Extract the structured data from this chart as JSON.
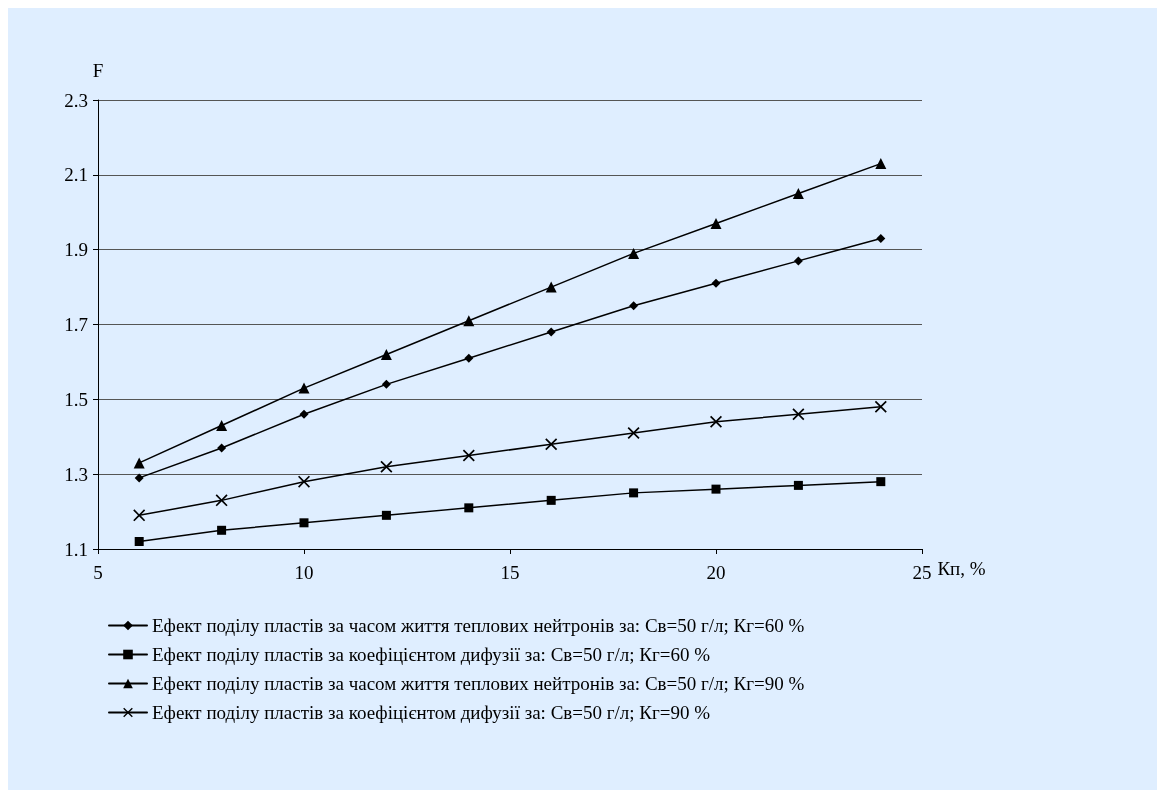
{
  "chart_data": {
    "type": "line",
    "xlabel": "Кп, %",
    "ylabel": "F",
    "x": [
      6,
      8,
      10,
      12,
      14,
      16,
      18,
      20,
      22,
      24
    ],
    "xlim": [
      5,
      25
    ],
    "xticks": [
      5,
      10,
      15,
      20,
      25
    ],
    "ylim": [
      1.1,
      2.3
    ],
    "yticks": [
      1.1,
      1.3,
      1.5,
      1.7,
      1.9,
      2.1,
      2.3
    ],
    "grid": "y",
    "legend": "bottom",
    "line_style": "solid",
    "series": [
      {
        "name": "Ефект поділу пластів за часом життя теплових нейтронів за: Св=50 г/л; Кг=60 %",
        "color": "#000000",
        "marker": "diamond",
        "values": [
          1.29,
          1.37,
          1.46,
          1.54,
          1.61,
          1.68,
          1.75,
          1.81,
          1.87,
          1.93
        ]
      },
      {
        "name": "Ефект поділу пластів за коефіцієнтом дифузії за: Св=50 г/л; Кг=60 %",
        "color": "#000000",
        "marker": "square",
        "values": [
          1.12,
          1.15,
          1.17,
          1.19,
          1.21,
          1.23,
          1.25,
          1.26,
          1.27,
          1.28
        ]
      },
      {
        "name": "Ефект поділу пластів за часом життя теплових нейтронів за: Св=50 г/л; Кг=90 %",
        "color": "#000000",
        "marker": "triangle",
        "values": [
          1.33,
          1.43,
          1.53,
          1.62,
          1.71,
          1.8,
          1.89,
          1.97,
          2.05,
          2.13
        ]
      },
      {
        "name": "Ефект поділу пластів за коефіцієнтом дифузії за: Св=50 г/л; Кг=90 %",
        "color": "#000000",
        "marker": "cross",
        "values": [
          1.19,
          1.23,
          1.28,
          1.32,
          1.35,
          1.38,
          1.41,
          1.44,
          1.46,
          1.48
        ]
      }
    ]
  }
}
